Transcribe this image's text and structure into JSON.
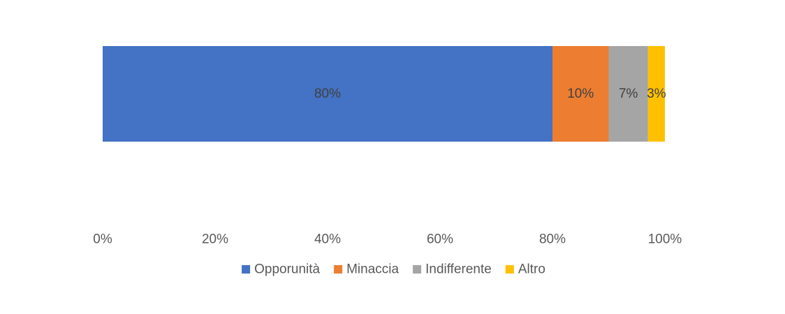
{
  "chart_data": {
    "type": "bar",
    "orientation": "horizontal",
    "stacked": true,
    "title": "",
    "xlabel": "",
    "ylabel": "",
    "categories": [
      ""
    ],
    "xlim": [
      0,
      1
    ],
    "x_ticks": [
      0,
      0.2,
      0.4,
      0.6,
      0.8,
      1.0
    ],
    "x_tick_labels": [
      "0%",
      "20%",
      "40%",
      "60%",
      "80%",
      "100%"
    ],
    "grid": false,
    "legend_position": "bottom",
    "series": [
      {
        "name": "Opporunità",
        "values": [
          0.8
        ],
        "label": "80%",
        "color": "#4472C4"
      },
      {
        "name": "Minaccia",
        "values": [
          0.1
        ],
        "label": "10%",
        "color": "#ED7D31"
      },
      {
        "name": "Indifferente",
        "values": [
          0.07
        ],
        "label": "7%",
        "color": "#A5A5A5"
      },
      {
        "name": "Altro",
        "values": [
          0.03
        ],
        "label": "3%",
        "color": "#FFC000"
      }
    ]
  }
}
